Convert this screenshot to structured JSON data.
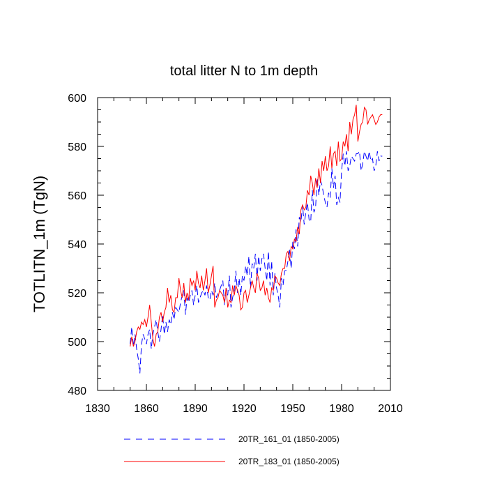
{
  "chart_data": {
    "type": "line",
    "title": "total litter N to 1m depth",
    "xlabel": "",
    "ylabel": "TOTLITN_1m  (TgN)",
    "xlim": [
      1830,
      2010
    ],
    "ylim": [
      480,
      600
    ],
    "xticks": [
      1830,
      1860,
      1890,
      1920,
      1950,
      1980,
      2010
    ],
    "yticks": [
      480,
      500,
      520,
      540,
      560,
      580,
      600
    ],
    "x_minor_step": 10,
    "y_minor_step": 5,
    "grid": false,
    "legend_position": "bottom",
    "series": [
      {
        "name": "20TR_161_01 (1850-2005)",
        "color": "#0000ff",
        "dash": "dashed",
        "x": [
          1850,
          1851,
          1852,
          1853,
          1854,
          1855,
          1856,
          1857,
          1858,
          1859,
          1860,
          1861,
          1862,
          1863,
          1864,
          1865,
          1866,
          1867,
          1868,
          1869,
          1870,
          1871,
          1872,
          1873,
          1874,
          1875,
          1876,
          1877,
          1878,
          1879,
          1880,
          1881,
          1882,
          1883,
          1884,
          1885,
          1886,
          1887,
          1888,
          1889,
          1890,
          1891,
          1892,
          1893,
          1894,
          1895,
          1896,
          1897,
          1898,
          1899,
          1900,
          1901,
          1902,
          1903,
          1904,
          1905,
          1906,
          1907,
          1908,
          1909,
          1910,
          1911,
          1912,
          1913,
          1914,
          1915,
          1916,
          1917,
          1918,
          1919,
          1920,
          1921,
          1922,
          1923,
          1924,
          1925,
          1926,
          1927,
          1928,
          1929,
          1930,
          1931,
          1932,
          1933,
          1934,
          1935,
          1936,
          1937,
          1938,
          1939,
          1940,
          1941,
          1942,
          1943,
          1944,
          1945,
          1946,
          1947,
          1948,
          1949,
          1950,
          1951,
          1952,
          1953,
          1954,
          1955,
          1956,
          1957,
          1958,
          1959,
          1960,
          1961,
          1962,
          1963,
          1964,
          1965,
          1966,
          1967,
          1968,
          1969,
          1970,
          1971,
          1972,
          1973,
          1974,
          1975,
          1976,
          1977,
          1978,
          1979,
          1980,
          1981,
          1982,
          1983,
          1984,
          1985,
          1986,
          1987,
          1988,
          1989,
          1990,
          1991,
          1992,
          1993,
          1994,
          1995,
          1996,
          1997,
          1998,
          1999,
          2000,
          2001,
          2002,
          2003,
          2004,
          2005
        ],
        "values": [
          499,
          506,
          498,
          503,
          497,
          493,
          487,
          499,
          503,
          501,
          499,
          503,
          505,
          497,
          503,
          506,
          509,
          504,
          500,
          505,
          511,
          503,
          508,
          504,
          509,
          507,
          512,
          509,
          514,
          513,
          512,
          516,
          519,
          521,
          511,
          518,
          516,
          519,
          521,
          515,
          519,
          523,
          516,
          518,
          520,
          521,
          519,
          523,
          518,
          517,
          521,
          519,
          524,
          518,
          520,
          521,
          523,
          525,
          515,
          522,
          519,
          527,
          514,
          518,
          521,
          529,
          520,
          526,
          519,
          527,
          525,
          531,
          527,
          535,
          522,
          532,
          530,
          536,
          525,
          535,
          529,
          534,
          536,
          530,
          525,
          537,
          523,
          533,
          519,
          528,
          522,
          519,
          514,
          526,
          523,
          529,
          529,
          533,
          538,
          530,
          541,
          538,
          546,
          539,
          551,
          549,
          556,
          548,
          553,
          557,
          550,
          549,
          562,
          553,
          555,
          567,
          560,
          566,
          564,
          560,
          557,
          555,
          561,
          559,
          571,
          563,
          568,
          556,
          559,
          557,
          570,
          577,
          572,
          578,
          570,
          572,
          576,
          575,
          574,
          577,
          577,
          578,
          570,
          573,
          578,
          576,
          574,
          578,
          574,
          575,
          570,
          572,
          578,
          574,
          576,
          576
        ]
      },
      {
        "name": "20TR_183_01 (1850-2005)",
        "color": "#ff0000",
        "dash": "solid",
        "x": [
          1850,
          1851,
          1852,
          1853,
          1854,
          1855,
          1856,
          1857,
          1858,
          1859,
          1860,
          1861,
          1862,
          1863,
          1864,
          1865,
          1866,
          1867,
          1868,
          1869,
          1870,
          1871,
          1872,
          1873,
          1874,
          1875,
          1876,
          1877,
          1878,
          1879,
          1880,
          1881,
          1882,
          1883,
          1884,
          1885,
          1886,
          1887,
          1888,
          1889,
          1890,
          1891,
          1892,
          1893,
          1894,
          1895,
          1896,
          1897,
          1898,
          1899,
          1900,
          1901,
          1902,
          1903,
          1904,
          1905,
          1906,
          1907,
          1908,
          1909,
          1910,
          1911,
          1912,
          1913,
          1914,
          1915,
          1916,
          1917,
          1918,
          1919,
          1920,
          1921,
          1922,
          1923,
          1924,
          1925,
          1926,
          1927,
          1928,
          1929,
          1930,
          1931,
          1932,
          1933,
          1934,
          1935,
          1936,
          1937,
          1938,
          1939,
          1940,
          1941,
          1942,
          1943,
          1944,
          1945,
          1946,
          1947,
          1948,
          1949,
          1950,
          1951,
          1952,
          1953,
          1954,
          1955,
          1956,
          1957,
          1958,
          1959,
          1960,
          1961,
          1962,
          1963,
          1964,
          1965,
          1966,
          1967,
          1968,
          1969,
          1970,
          1971,
          1972,
          1973,
          1974,
          1975,
          1976,
          1977,
          1978,
          1979,
          1980,
          1981,
          1982,
          1983,
          1984,
          1985,
          1986,
          1987,
          1988,
          1989,
          1990,
          1991,
          1992,
          1993,
          1994,
          1995,
          1996,
          1997,
          1998,
          1999,
          2000,
          2001,
          2002,
          2003,
          2004,
          2005
        ],
        "values": [
          498,
          502,
          498,
          500,
          504,
          506,
          505,
          508,
          507,
          509,
          506,
          510,
          515,
          508,
          501,
          498,
          503,
          504,
          510,
          512,
          508,
          512,
          514,
          522,
          516,
          519,
          513,
          512,
          518,
          518,
          526,
          521,
          518,
          524,
          516,
          520,
          517,
          526,
          523,
          525,
          521,
          529,
          524,
          522,
          527,
          521,
          525,
          530,
          520,
          523,
          527,
          531,
          514,
          517,
          518,
          521,
          520,
          519,
          516,
          522,
          514,
          517,
          516,
          523,
          519,
          523,
          521,
          519,
          513,
          514,
          520,
          521,
          516,
          519,
          522,
          525,
          522,
          520,
          528,
          526,
          521,
          522,
          525,
          519,
          522,
          518,
          516,
          522,
          521,
          527,
          526,
          524,
          523,
          528,
          530,
          530,
          536,
          537,
          533,
          539,
          538,
          542,
          541,
          547,
          544,
          554,
          556,
          554,
          555,
          562,
          560,
          568,
          565,
          560,
          567,
          563,
          571,
          565,
          574,
          570,
          576,
          570,
          572,
          580,
          571,
          577,
          578,
          572,
          582,
          574,
          575,
          582,
          580,
          585,
          578,
          590,
          585,
          591,
          593,
          597,
          582,
          586,
          589,
          590,
          596,
          595,
          589,
          591,
          592,
          593,
          591,
          589,
          590,
          592,
          593,
          593
        ]
      }
    ]
  }
}
